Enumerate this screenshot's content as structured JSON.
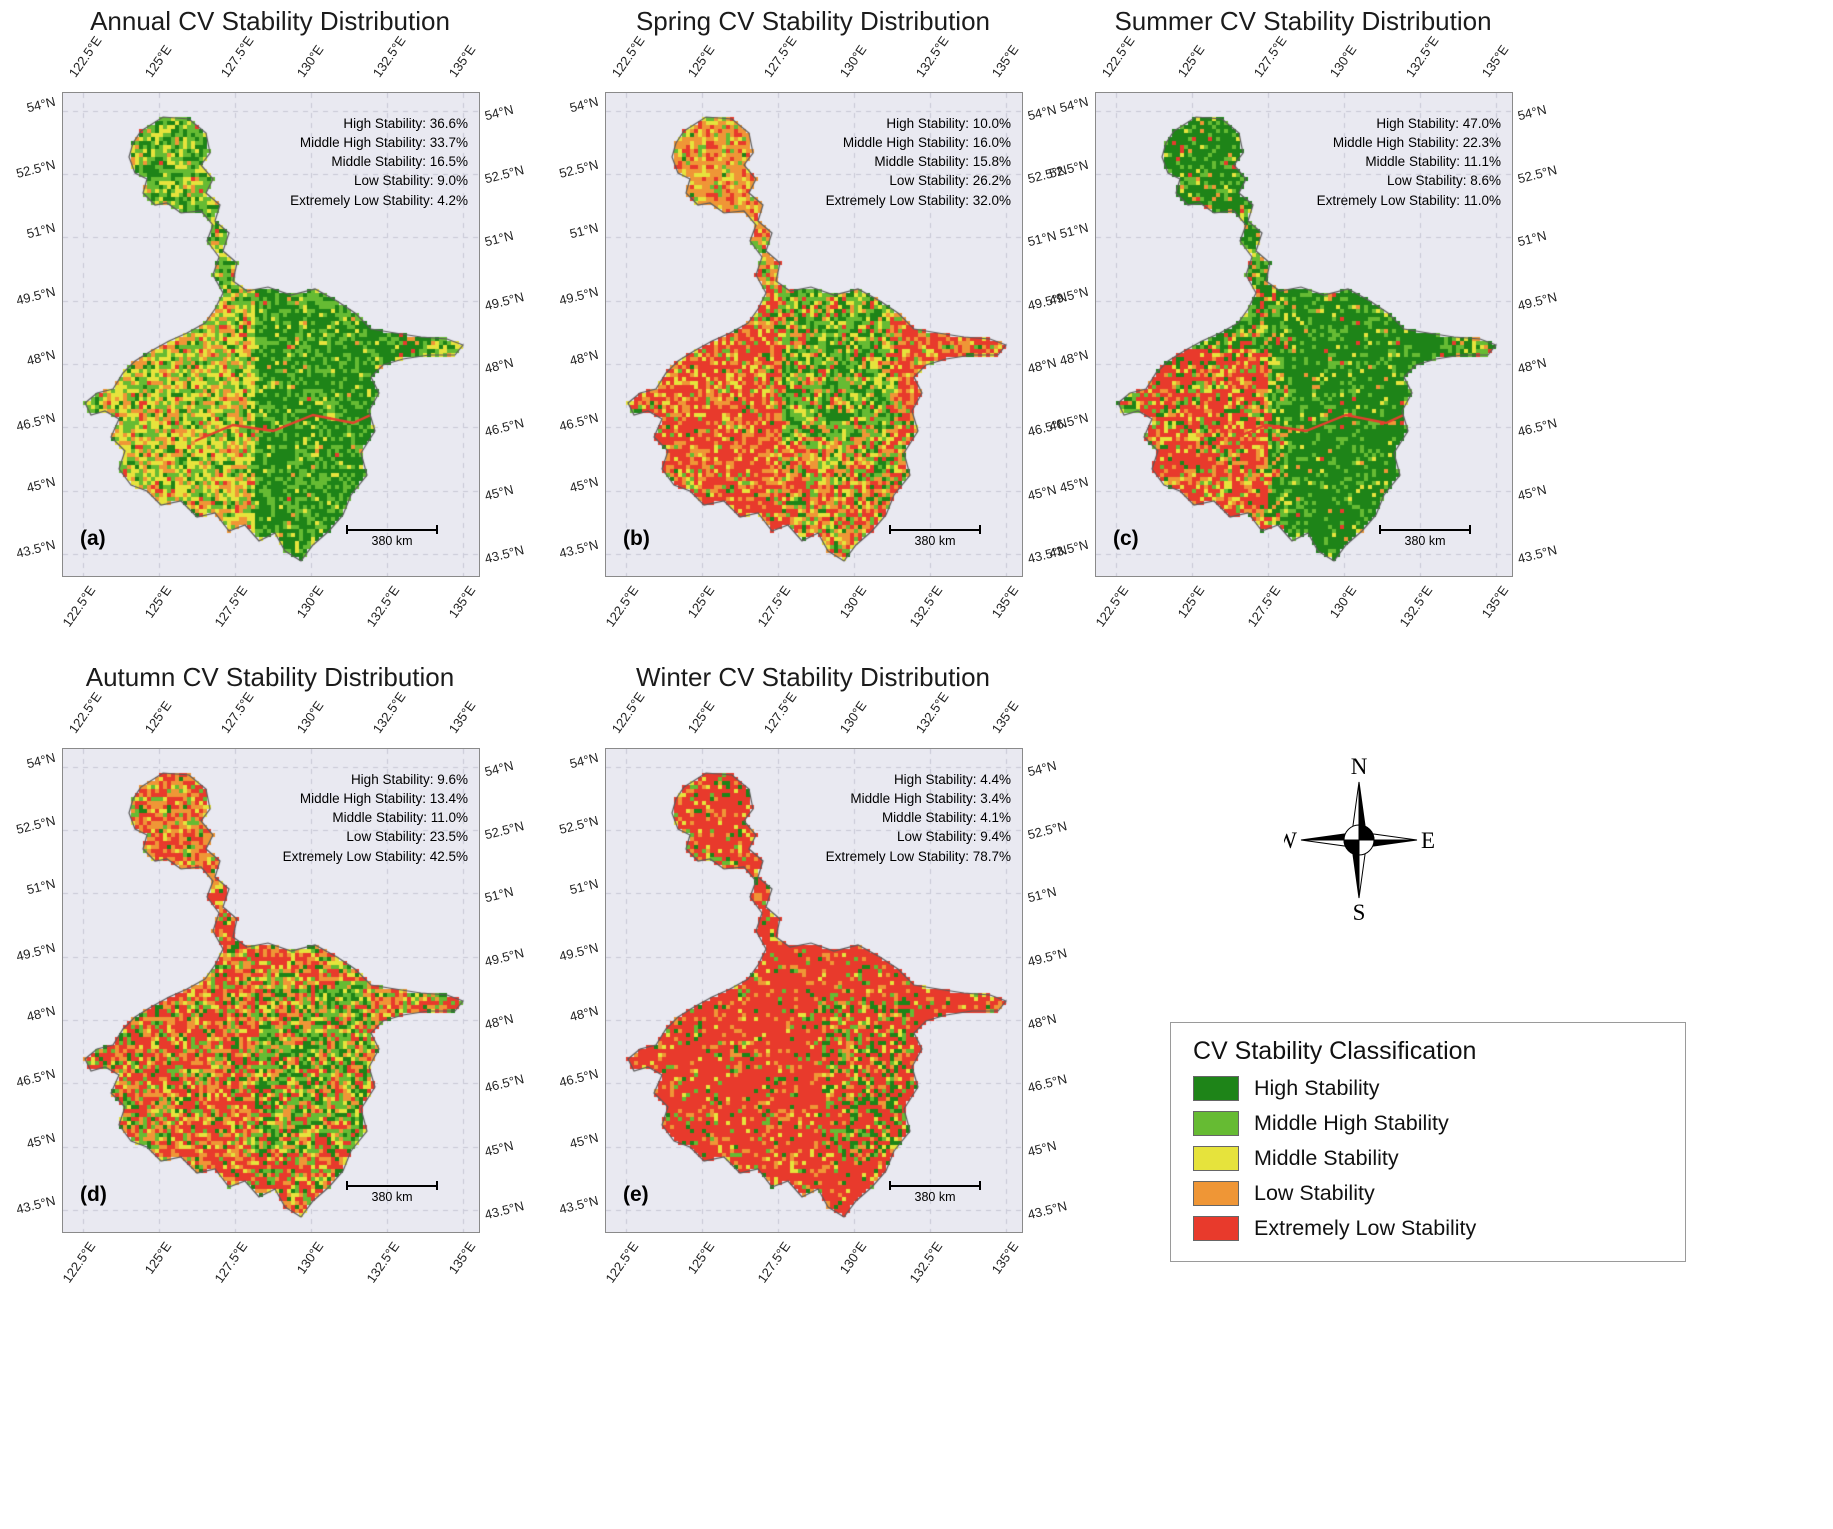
{
  "axis": {
    "lon_labels": [
      "122.5°E",
      "125°E",
      "127.5°E",
      "130°E",
      "132.5°E",
      "135°E"
    ],
    "lat_labels": [
      "54°N",
      "52.5°N",
      "51°N",
      "49.5°N",
      "48°N",
      "46.5°N",
      "45°N",
      "43.5°N"
    ]
  },
  "scale_bar_label": "380 km",
  "compass": {
    "n": "N",
    "e": "E",
    "s": "S",
    "w": "W"
  },
  "legend": {
    "title": "CV Stability Classification",
    "items": [
      {
        "label": "High Stability",
        "color": "#1e8418"
      },
      {
        "label": "Middle High Stability",
        "color": "#66bb33"
      },
      {
        "label": "Middle Stability",
        "color": "#e6e33c"
      },
      {
        "label": "Low Stability",
        "color": "#ef9636"
      },
      {
        "label": "Extremely Low Stability",
        "color": "#e83a2c"
      }
    ]
  },
  "panels": [
    {
      "id": "a",
      "letter": "(a)",
      "title": "Annual CV Stability Distribution",
      "stats": [
        {
          "text": "High Stability: 36.6%",
          "pct": 36.6
        },
        {
          "text": "Middle High Stability: 33.7%",
          "pct": 33.7
        },
        {
          "text": "Middle Stability: 16.5%",
          "pct": 16.5
        },
        {
          "text": "Low Stability: 9.0%",
          "pct": 9.0
        },
        {
          "text": "Extremely Low Stability: 4.2%",
          "pct": 4.2
        }
      ]
    },
    {
      "id": "b",
      "letter": "(b)",
      "title": "Spring CV Stability Distribution",
      "stats": [
        {
          "text": "High Stability: 10.0%",
          "pct": 10.0
        },
        {
          "text": "Middle High Stability: 16.0%",
          "pct": 16.0
        },
        {
          "text": "Middle Stability: 15.8%",
          "pct": 15.8
        },
        {
          "text": "Low Stability: 26.2%",
          "pct": 26.2
        },
        {
          "text": "Extremely Low Stability: 32.0%",
          "pct": 32.0
        }
      ]
    },
    {
      "id": "c",
      "letter": "(c)",
      "title": "Summer CV Stability Distribution",
      "stats": [
        {
          "text": "High Stability: 47.0%",
          "pct": 47.0
        },
        {
          "text": "Middle High Stability: 22.3%",
          "pct": 22.3
        },
        {
          "text": "Middle Stability: 11.1%",
          "pct": 11.1
        },
        {
          "text": "Low Stability: 8.6%",
          "pct": 8.6
        },
        {
          "text": "Extremely Low Stability: 11.0%",
          "pct": 11.0
        }
      ]
    },
    {
      "id": "d",
      "letter": "(d)",
      "title": "Autumn CV Stability Distribution",
      "stats": [
        {
          "text": "High Stability: 9.6%",
          "pct": 9.6
        },
        {
          "text": "Middle High Stability: 13.4%",
          "pct": 13.4
        },
        {
          "text": "Middle Stability: 11.0%",
          "pct": 11.0
        },
        {
          "text": "Low Stability: 23.5%",
          "pct": 23.5
        },
        {
          "text": "Extremely Low Stability: 42.5%",
          "pct": 42.5
        }
      ]
    },
    {
      "id": "e",
      "letter": "(e)",
      "title": "Winter CV Stability Distribution",
      "stats": [
        {
          "text": "High Stability: 4.4%",
          "pct": 4.4
        },
        {
          "text": "Middle High Stability: 3.4%",
          "pct": 3.4
        },
        {
          "text": "Middle Stability: 4.1%",
          "pct": 4.1
        },
        {
          "text": "Low Stability: 9.4%",
          "pct": 9.4
        },
        {
          "text": "Extremely Low Stability: 78.7%",
          "pct": 78.7
        }
      ]
    }
  ]
}
